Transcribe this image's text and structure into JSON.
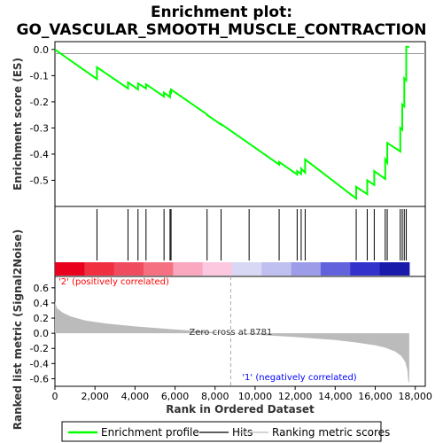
{
  "chart_data": {
    "type": "line",
    "title_line1": "Enrichment plot:",
    "title_line2": "GO_VASCULAR_SMOOTH_MUSCLE_CONTRACTION",
    "xlabel": "Rank in Ordered Dataset",
    "ylabel_top": "Enrichment score (ES)",
    "ylabel_bottom": "Ranked list metric (Signal2Noise)",
    "xlim": [
      0,
      18500
    ],
    "x_ticks": [
      0,
      2000,
      4000,
      6000,
      8000,
      10000,
      12000,
      14000,
      16000,
      18000
    ],
    "x_tick_labels": [
      "0",
      "2,000",
      "4,000",
      "6,000",
      "8,000",
      "10,000",
      "12,000",
      "14,000",
      "16,000",
      "18,000"
    ],
    "es_ylim": [
      -0.6,
      0.03
    ],
    "es_ticks": [
      0.0,
      -0.1,
      -0.2,
      -0.3,
      -0.4,
      -0.5
    ],
    "es_tick_labels": [
      "0.0",
      "-0.1",
      "-0.2",
      "-0.3",
      "-0.4",
      "-0.5"
    ],
    "metric_ylim": [
      -0.7,
      0.75
    ],
    "metric_ticks": [
      0.6,
      0.4,
      0.2,
      0.0,
      -0.2,
      -0.4,
      -0.6
    ],
    "metric_tick_labels": [
      "0.6",
      "0.4",
      "0.2",
      "0.0",
      "-0.2",
      "-0.4",
      "-0.6"
    ],
    "n_genes": 17700,
    "zero_cross_rank": 8781,
    "zero_cross_label": "Zero cross at 8781",
    "pos_label": "'2' (positively correlated)",
    "neg_label": "'1' (negatively correlated)",
    "enrichment_profile": {
      "x": [
        0,
        2100,
        2100,
        3650,
        3650,
        4150,
        4150,
        4550,
        4550,
        5450,
        5450,
        5750,
        5750,
        5800,
        5800,
        7600,
        7600,
        8300,
        8300,
        9700,
        9700,
        11200,
        11200,
        12100,
        12100,
        12300,
        12300,
        12500,
        12500,
        15050,
        15050,
        15600,
        15600,
        15950,
        15950,
        16500,
        16500,
        16600,
        16600,
        17250,
        17250,
        17350,
        17350,
        17450,
        17450,
        17550,
        17550,
        17700
      ],
      "y": [
        0.0,
        -0.113,
        -0.068,
        -0.149,
        -0.126,
        -0.153,
        -0.13,
        -0.149,
        -0.133,
        -0.18,
        -0.165,
        -0.182,
        -0.162,
        -0.165,
        -0.153,
        -0.248,
        -0.25,
        -0.287,
        -0.285,
        -0.36,
        -0.36,
        -0.44,
        -0.43,
        -0.478,
        -0.465,
        -0.476,
        -0.455,
        -0.471,
        -0.42,
        -0.57,
        -0.525,
        -0.553,
        -0.5,
        -0.518,
        -0.465,
        -0.495,
        -0.42,
        -0.433,
        -0.357,
        -0.39,
        -0.3,
        -0.307,
        -0.21,
        -0.218,
        -0.11,
        -0.118,
        0.01,
        0.01
      ]
    },
    "hits": [
      2100,
      3650,
      4150,
      4550,
      5450,
      5750,
      5800,
      7600,
      8300,
      9700,
      11200,
      12100,
      12300,
      12500,
      15050,
      15600,
      15950,
      16500,
      16600,
      17250,
      17350,
      17450,
      17550
    ],
    "metric_curve": {
      "x": [
        0,
        100,
        400,
        800,
        1500,
        2500,
        4000,
        6000,
        8781,
        10000,
        12000,
        14000,
        15000,
        16000,
        16500,
        17000,
        17300,
        17500,
        17600,
        17650,
        17700
      ],
      "y": [
        0.42,
        0.33,
        0.27,
        0.22,
        0.17,
        0.13,
        0.09,
        0.05,
        0.0,
        -0.02,
        -0.05,
        -0.09,
        -0.12,
        -0.16,
        -0.19,
        -0.24,
        -0.3,
        -0.38,
        -0.48,
        -0.62,
        -0.66
      ]
    },
    "series": [
      {
        "name": "Enrichment profile",
        "color": "#00ff00"
      },
      {
        "name": "Hits",
        "color": "#000000"
      },
      {
        "name": "Ranking metric scores",
        "color": "#bbbbbb"
      }
    ],
    "colors": {
      "pos_label": "#ff0000",
      "neg_label": "#0000ff",
      "heatbar": [
        "#e8001c",
        "#f03040",
        "#f04c60",
        "#f57080",
        "#f9a8c0",
        "#fbc8e0",
        "#d8d8f4",
        "#c0c0f0",
        "#9c9ce8",
        "#6262dd",
        "#3333cc",
        "#1a1aaa"
      ]
    }
  },
  "legend": [
    "Enrichment profile",
    "Hits",
    "Ranking metric scores"
  ]
}
